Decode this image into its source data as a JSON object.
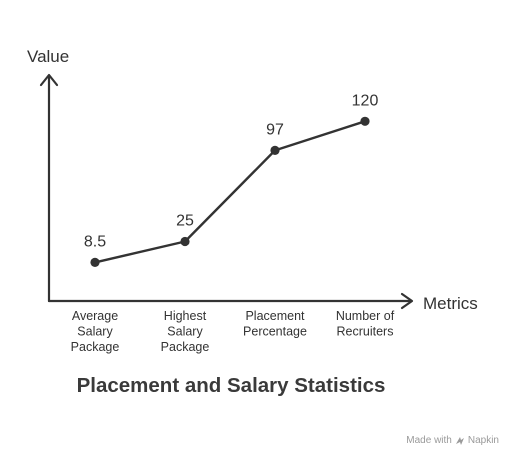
{
  "chart_data": {
    "type": "line",
    "title": "Placement and Salary Statistics",
    "xlabel": "Metrics",
    "ylabel": "Value",
    "categories": [
      [
        "Average",
        "Salary",
        "Package"
      ],
      [
        "Highest",
        "Salary",
        "Package"
      ],
      [
        "Placement",
        "Percentage"
      ],
      [
        "Number of",
        "Recruiters"
      ]
    ],
    "series": [
      {
        "values": [
          8.5,
          25,
          97,
          120
        ],
        "data_labels": [
          "8.5",
          "25",
          "97",
          "120"
        ]
      }
    ],
    "ylim": [
      -22,
      155
    ],
    "grid": false,
    "legend": "none"
  },
  "watermark": {
    "prefix": "Made with",
    "brand": "Napkin",
    "icon": "napkin-logo-icon"
  },
  "colors": {
    "ink": "#333333",
    "watermark": "#9a9a9a"
  }
}
